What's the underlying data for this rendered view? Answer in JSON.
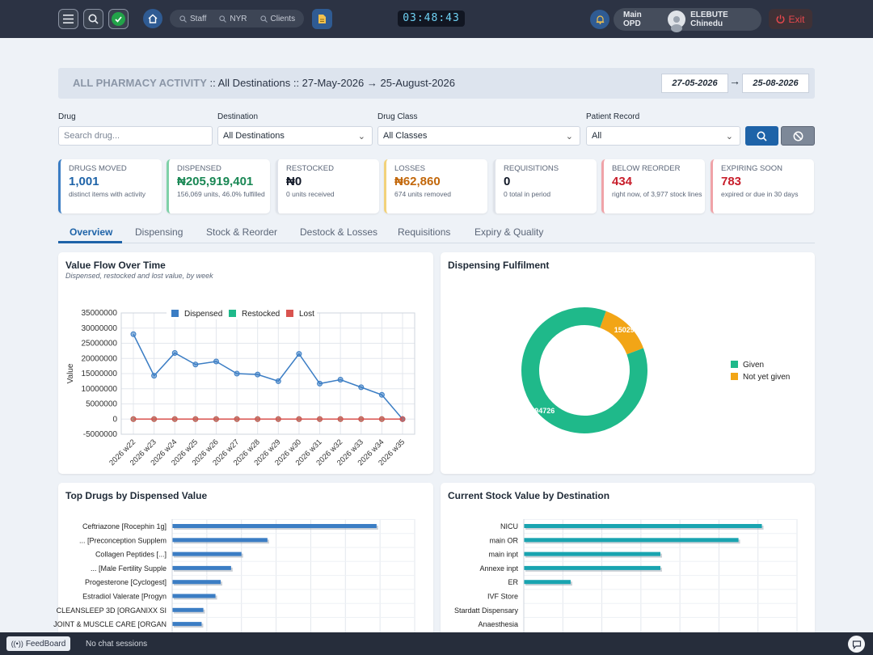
{
  "topbar": {
    "pills": [
      "Staff",
      "NYR",
      "Clients"
    ],
    "clock": "03:48:43",
    "location": "Main OPD",
    "user": "ELEBUTE Chinedu",
    "exit_label": "Exit"
  },
  "report": {
    "title_prefix": "ALL PHARMACY ACTIVITY",
    "title_rest": " :: All Destinations :: 27-May-2026 → 25-August-2026",
    "date_from": "27-05-2026",
    "date_arrow": "→",
    "date_to": "25-08-2026"
  },
  "filters": {
    "drug_label": "Drug",
    "drug_placeholder": "Search drug...",
    "destination_label": "Destination",
    "destination_value": "All Destinations",
    "class_label": "Drug Class",
    "class_value": "All Classes",
    "patient_label": "Patient Record",
    "patient_value": "All"
  },
  "kpis": [
    {
      "label": "DRUGS MOVED",
      "value": "1,001",
      "sub": "distinct items with activity",
      "color": "#1e63a8"
    },
    {
      "label": "DISPENSED",
      "value": "₦205,919,401",
      "sub": "156,069 units, 46.0% fulfilled",
      "color": "#198754"
    },
    {
      "label": "RESTOCKED",
      "value": "₦0",
      "sub": "0 units received",
      "color": "#111827"
    },
    {
      "label": "LOSSES",
      "value": "₦62,860",
      "sub": "674 units removed",
      "color": "#c2670a"
    },
    {
      "label": "REQUISITIONS",
      "value": "0",
      "sub": "0 total in period",
      "color": "#111827"
    },
    {
      "label": "BELOW REORDER",
      "value": "434",
      "sub": "right now, of 3,977 stock lines",
      "color": "#c81e2b"
    },
    {
      "label": "EXPIRING SOON",
      "value": "783",
      "sub": "expired or due in 30 days",
      "color": "#c81e2b"
    }
  ],
  "tabs": [
    "Overview",
    "Dispensing",
    "Stock & Reorder",
    "Destock & Losses",
    "Requisitions",
    "Expiry & Quality"
  ],
  "panels": {
    "value_flow_title": "Value Flow Over Time",
    "value_flow_subtitle": "Dispensed, restocked and lost value, by week",
    "fulfilment_title": "Dispensing Fulfilment",
    "top_drugs_title": "Top Drugs by Dispensed Value",
    "stock_dest_title": "Current Stock Value by Destination"
  },
  "statusbar": {
    "feedboard": "FeedBoard",
    "chat_status": "No chat sessions"
  },
  "chart_data": [
    {
      "type": "line",
      "title": "Value Flow Over Time",
      "subtitle": "Dispensed, restocked and lost value, by week",
      "ylabel": "Value",
      "xlabel": "",
      "ylim": [
        -5000000,
        35000000
      ],
      "yticks": [
        -5000000,
        0,
        5000000,
        10000000,
        15000000,
        20000000,
        25000000,
        30000000,
        35000000
      ],
      "grid": true,
      "legend": "top",
      "categories": [
        "2026 w22",
        "2026 w23",
        "2026 w24",
        "2026 w25",
        "2026 w26",
        "2026 w27",
        "2026 w28",
        "2026 w29",
        "2026 w30",
        "2026 w31",
        "2026 w32",
        "2026 w33",
        "2026 w34",
        "2026 w35"
      ],
      "series": [
        {
          "name": "Dispensed",
          "color": "#3b7dc4",
          "values": [
            28000000,
            14300000,
            21800000,
            18000000,
            19000000,
            15000000,
            14700000,
            12500000,
            21500000,
            11700000,
            13000000,
            10500000,
            8000000,
            0
          ]
        },
        {
          "name": "Restocked",
          "color": "#1fb98a",
          "values": [
            0,
            0,
            0,
            0,
            0,
            0,
            0,
            0,
            0,
            0,
            0,
            0,
            0,
            0
          ]
        },
        {
          "name": "Lost",
          "color": "#d9534f",
          "values": [
            0,
            0,
            0,
            0,
            0,
            0,
            0,
            0,
            0,
            0,
            0,
            0,
            0,
            0
          ]
        }
      ]
    },
    {
      "type": "pie",
      "title": "Dispensing Fulfilment",
      "legend": "right",
      "categories": [
        "Given",
        "Not yet given"
      ],
      "values": [
        94726,
        15029
      ],
      "labels": [
        "94726",
        "15029"
      ],
      "colors": [
        "#1fb98a",
        "#f2a516"
      ]
    },
    {
      "type": "bar",
      "orientation": "horizontal",
      "title": "Top Drugs by Dispensed Value",
      "color": "#3b7dc4",
      "xlim": [
        0,
        14000000
      ],
      "categories": [
        "Ceftriazone [Rocephin 1g]",
        "... [Preconception Supplem",
        "Collagen Peptides [...]",
        "... [Male Fertility Supple",
        "Progesterone [Cyclogest]",
        "Estradiol Valerate [Progyn",
        "CLEANSLEEP 3D [ORGANIXX SI",
        "JOINT & MUSCLE CARE [ORGAN"
      ],
      "values": [
        11800000,
        5500000,
        4000000,
        3400000,
        2800000,
        2500000,
        1800000,
        1700000
      ]
    },
    {
      "type": "bar",
      "orientation": "horizontal",
      "title": "Current Stock Value by Destination",
      "color": "#19a4b0",
      "xlim": [
        0,
        14000000
      ],
      "categories": [
        "NICU",
        "main OR",
        "main inpt",
        "Annexe inpt",
        "ER",
        "IVF Store",
        "Stardatt Dispensary",
        "Anaesthesia"
      ],
      "values": [
        12200000,
        11000000,
        7000000,
        7000000,
        2400000,
        0,
        0,
        0
      ]
    }
  ]
}
